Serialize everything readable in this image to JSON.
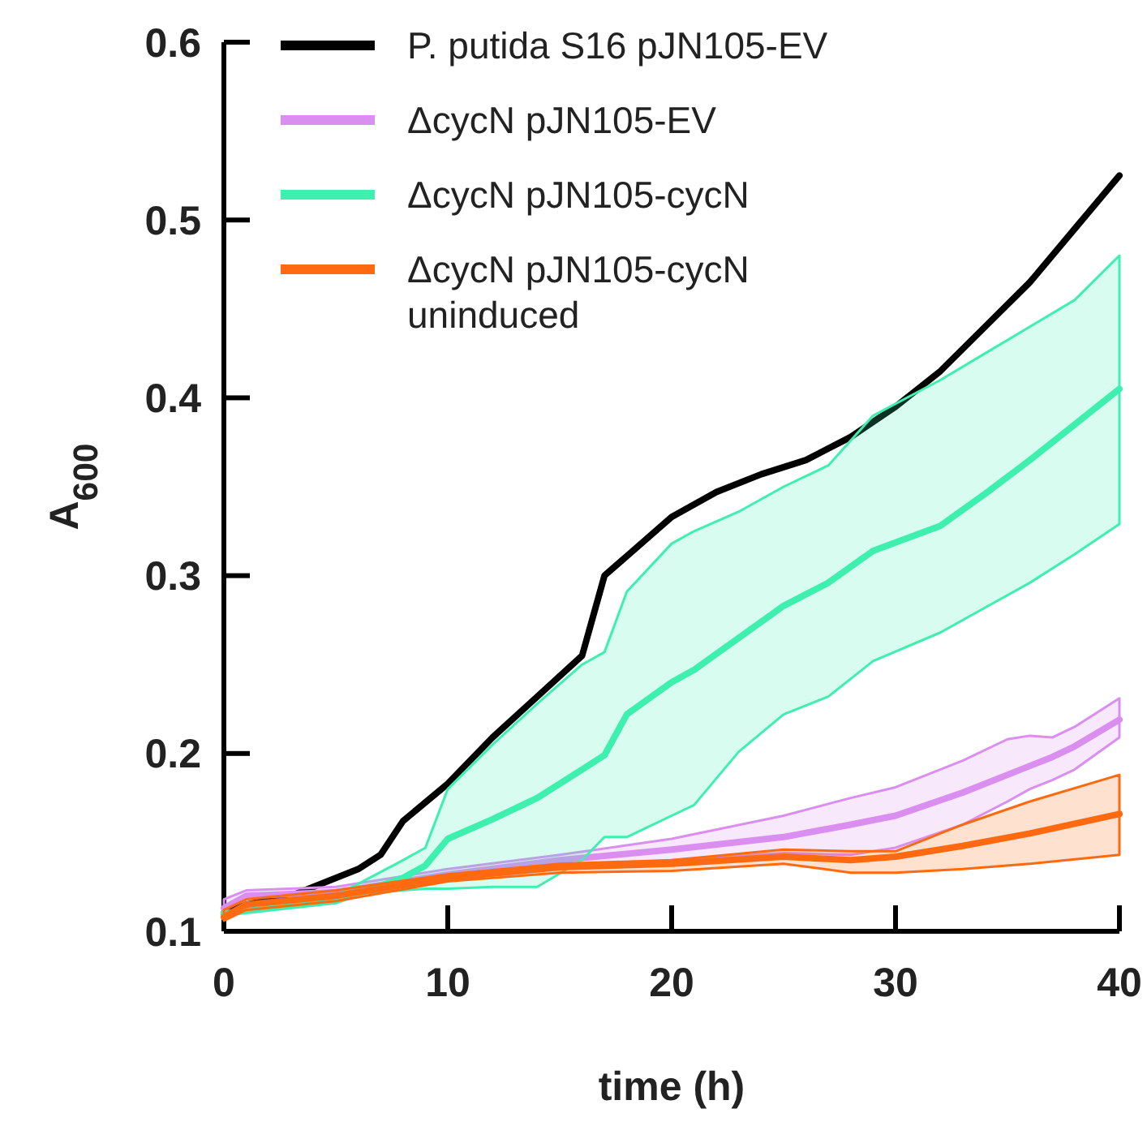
{
  "chart_data": {
    "type": "line",
    "xlabel": "time (h)",
    "ylabel": "A$_{600}$",
    "xlim": [
      0,
      40
    ],
    "ylim": [
      0.1,
      0.6
    ],
    "xticks": [
      0,
      10,
      20,
      30,
      40
    ],
    "yticks": [
      0.1,
      0.2,
      0.3,
      0.4,
      0.5,
      0.6
    ],
    "legend": "top left",
    "grid": false,
    "marker": "none",
    "line_style": "solid",
    "series": [
      {
        "name": "P. putida S16 pJN105-EV",
        "color": "#000000",
        "x": [
          0,
          1,
          3,
          4,
          5,
          6,
          7,
          8,
          10,
          12,
          14,
          16,
          17,
          18,
          20,
          22,
          24,
          26,
          28,
          30,
          32,
          34,
          36,
          38,
          40
        ],
        "values": [
          0.11,
          0.115,
          0.12,
          0.125,
          0.13,
          0.135,
          0.143,
          0.162,
          0.183,
          0.209,
          0.232,
          0.255,
          0.3,
          0.311,
          0.333,
          0.347,
          0.357,
          0.365,
          0.378,
          0.395,
          0.415,
          0.44,
          0.465,
          0.495,
          0.525
        ]
      },
      {
        "name": "ΔcycN pJN105-EV",
        "color": "#d98ef0",
        "x": [
          0,
          1,
          5,
          10,
          15,
          20,
          25,
          28,
          30,
          33,
          35,
          36,
          37,
          38,
          40
        ],
        "values": [
          0.113,
          0.12,
          0.122,
          0.132,
          0.14,
          0.146,
          0.153,
          0.16,
          0.165,
          0.178,
          0.188,
          0.193,
          0.198,
          0.204,
          0.219
        ],
        "lower": [
          0.108,
          0.115,
          0.119,
          0.13,
          0.136,
          0.14,
          0.144,
          0.143,
          0.147,
          0.16,
          0.173,
          0.18,
          0.185,
          0.191,
          0.209
        ],
        "upper": [
          0.118,
          0.123,
          0.125,
          0.135,
          0.143,
          0.152,
          0.165,
          0.175,
          0.181,
          0.196,
          0.208,
          0.21,
          0.209,
          0.215,
          0.231
        ]
      },
      {
        "name": "ΔcycN pJN105-cycN",
        "color": "#3ef0b0",
        "x": [
          0,
          5,
          8,
          9,
          10,
          12,
          14,
          16,
          17,
          18,
          20,
          21,
          23,
          25,
          27,
          29,
          32,
          34,
          36,
          38,
          40
        ],
        "values": [
          0.11,
          0.117,
          0.13,
          0.137,
          0.152,
          0.163,
          0.175,
          0.191,
          0.199,
          0.222,
          0.24,
          0.247,
          0.265,
          0.283,
          0.296,
          0.314,
          0.328,
          0.346,
          0.365,
          0.385,
          0.405
        ],
        "lower": [
          0.11,
          0.12,
          0.123,
          0.124,
          0.124,
          0.125,
          0.125,
          0.14,
          0.153,
          0.153,
          0.165,
          0.171,
          0.201,
          0.222,
          0.232,
          0.252,
          0.268,
          0.282,
          0.296,
          0.312,
          0.329
        ],
        "upper": [
          0.11,
          0.12,
          0.14,
          0.147,
          0.18,
          0.205,
          0.228,
          0.25,
          0.257,
          0.291,
          0.318,
          0.325,
          0.336,
          0.35,
          0.362,
          0.39,
          0.41,
          0.425,
          0.44,
          0.455,
          0.48
        ]
      },
      {
        "name": "ΔcycN pJN105-cycN uninduced",
        "color": "#ff6a10",
        "x": [
          0,
          1,
          5,
          10,
          15,
          20,
          25,
          28,
          30,
          33,
          36,
          40
        ],
        "values": [
          0.108,
          0.115,
          0.12,
          0.13,
          0.136,
          0.138,
          0.142,
          0.14,
          0.142,
          0.148,
          0.155,
          0.166
        ],
        "lower": [
          0.106,
          0.112,
          0.117,
          0.128,
          0.133,
          0.134,
          0.138,
          0.133,
          0.133,
          0.135,
          0.138,
          0.143
        ],
        "upper": [
          0.112,
          0.118,
          0.123,
          0.132,
          0.138,
          0.14,
          0.146,
          0.145,
          0.145,
          0.16,
          0.173,
          0.188
        ]
      }
    ]
  }
}
